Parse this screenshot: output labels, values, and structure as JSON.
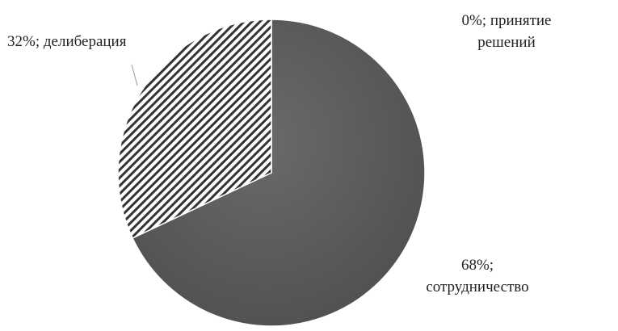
{
  "chart_data": {
    "type": "pie",
    "title": "",
    "legend": "none",
    "slices": [
      {
        "name": "принятие решений",
        "value": 0,
        "label_line1": "0%; принятие",
        "label_line2": "решений",
        "fill": "#bfbfbf",
        "pattern": "none"
      },
      {
        "name": "сотрудничество",
        "value": 68,
        "label_line1": "68%;",
        "label_line2": "сотрудничество",
        "fill": "#595959",
        "pattern": "none"
      },
      {
        "name": "делиберация",
        "value": 32,
        "label_line1": "32%; делиберация",
        "label_line2": "",
        "fill": "#ffffff",
        "pattern": "diagonal-stripes"
      }
    ]
  },
  "colors": {
    "solid_slice": "#595959",
    "stripe": "#333333",
    "leader_line": "#9a9a9a",
    "text": "#222222"
  }
}
